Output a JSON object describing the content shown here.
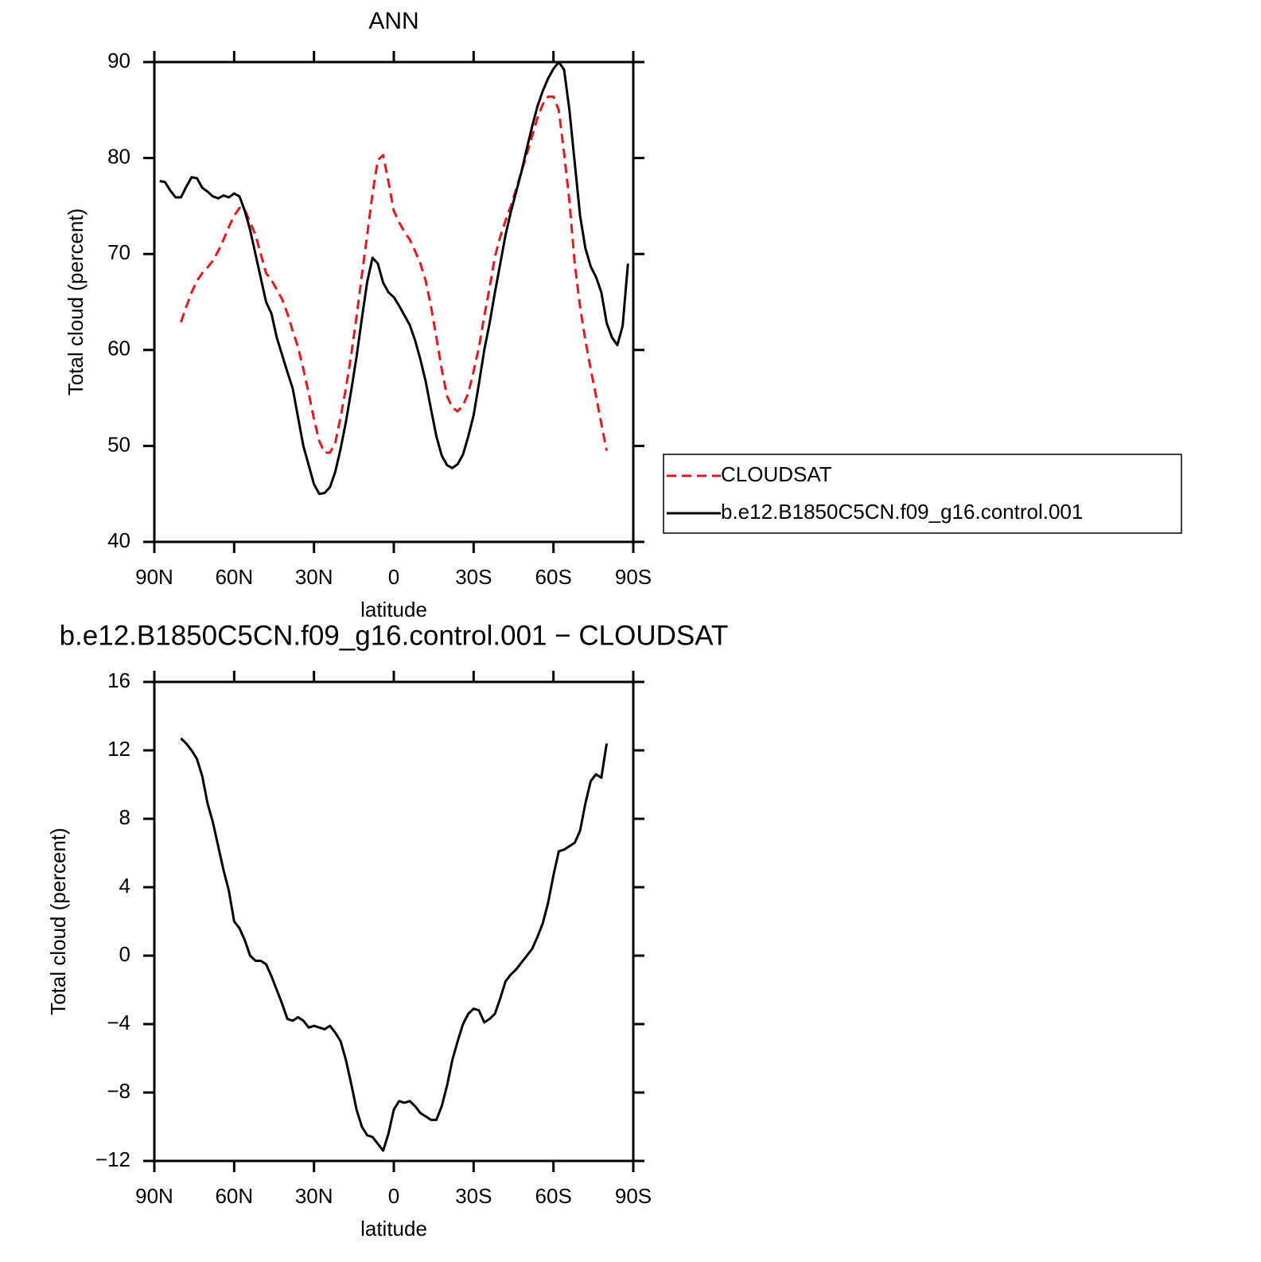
{
  "chart_data": [
    {
      "type": "line",
      "title": "ANN",
      "xlabel": "latitude",
      "ylabel": "Total cloud (percent)",
      "x": [
        88,
        86,
        84,
        82,
        80,
        78,
        76,
        74,
        72,
        70,
        68,
        66,
        64,
        62,
        60,
        58,
        56,
        54,
        52,
        50,
        48,
        46,
        44,
        42,
        40,
        38,
        36,
        34,
        32,
        30,
        28,
        26,
        24,
        22,
        20,
        18,
        16,
        14,
        12,
        10,
        8,
        6,
        4,
        2,
        0,
        -2,
        -4,
        -6,
        -8,
        -10,
        -12,
        -14,
        -16,
        -18,
        -20,
        -22,
        -24,
        -26,
        -28,
        -30,
        -32,
        -34,
        -36,
        -38,
        -40,
        -42,
        -44,
        -46,
        -48,
        -50,
        -52,
        -54,
        -56,
        -58,
        -60,
        -62,
        -64,
        -66,
        -68,
        -70,
        -72,
        -74,
        -76,
        -78,
        -80,
        -82,
        -84,
        -86,
        -88
      ],
      "series": [
        {
          "name": "CLOUDSAT",
          "color": "#e8171b",
          "dashed": true,
          "values": [
            null,
            null,
            null,
            null,
            62.9,
            64.5,
            66.0,
            67.2,
            68.0,
            68.6,
            69.3,
            70.3,
            71.5,
            72.8,
            74.0,
            74.8,
            74.6,
            73.3,
            72.0,
            70.0,
            68.0,
            67.3,
            66.3,
            65.3,
            63.8,
            62.0,
            60.3,
            58.0,
            55.5,
            52.8,
            50.5,
            49.3,
            49.3,
            50.3,
            53.0,
            56.0,
            59.5,
            63.5,
            67.8,
            72.0,
            76.3,
            79.8,
            80.3,
            77.5,
            74.5,
            73.3,
            72.3,
            71.5,
            70.3,
            69.0,
            67.2,
            64.5,
            61.3,
            58.0,
            55.2,
            54.0,
            53.6,
            54.2,
            55.5,
            57.8,
            60.3,
            63.5,
            66.5,
            69.7,
            71.8,
            73.5,
            75.0,
            76.8,
            78.6,
            80.4,
            82.3,
            84.2,
            85.6,
            86.4,
            86.4,
            85.0,
            80.5,
            75.5,
            69.0,
            64.5,
            61.0,
            58.0,
            55.2,
            52.3,
            49.5,
            null,
            null,
            null,
            null
          ]
        },
        {
          "name": "b.e12.B1850C5CN.f09_g16.control.001",
          "color": "#000000",
          "dashed": false,
          "values": [
            77.6,
            77.5,
            76.6,
            75.9,
            75.9,
            77.0,
            78.0,
            77.9,
            76.9,
            76.5,
            76.0,
            75.8,
            76.1,
            75.9,
            76.3,
            76.0,
            74.5,
            72.5,
            70.0,
            67.5,
            65.0,
            63.8,
            61.3,
            59.5,
            57.7,
            56.0,
            53.0,
            50.0,
            48.0,
            46.0,
            45.0,
            45.1,
            45.7,
            47.3,
            49.7,
            52.5,
            55.8,
            59.3,
            63.3,
            67.1,
            69.6,
            69.0,
            67.0,
            66.0,
            65.5,
            64.6,
            63.6,
            62.6,
            61.0,
            59.0,
            56.7,
            53.8,
            51.0,
            49.0,
            48.0,
            47.7,
            48.1,
            49.1,
            51.0,
            53.2,
            56.5,
            60.0,
            62.8,
            66.0,
            69.0,
            72.0,
            74.4,
            76.5,
            78.6,
            81.0,
            83.3,
            85.4,
            87.0,
            88.3,
            89.3,
            90.0,
            89.2,
            85.0,
            79.5,
            74.0,
            70.6,
            68.7,
            67.6,
            66.0,
            62.8,
            61.3,
            60.5,
            62.5,
            69.0
          ]
        }
      ],
      "xlim": [
        90,
        -90
      ],
      "xticks": [
        {
          "value": 90,
          "label": "90N"
        },
        {
          "value": 60,
          "label": "60N"
        },
        {
          "value": 30,
          "label": "30N"
        },
        0,
        {
          "value": -30,
          "label": "30S"
        },
        {
          "value": -60,
          "label": "60S"
        },
        {
          "value": -90,
          "label": "90S"
        }
      ],
      "ylim": [
        40,
        90
      ],
      "yticks": [
        40,
        50,
        60,
        70,
        80,
        90
      ],
      "legend": "outside-right"
    },
    {
      "type": "line",
      "title": "b.e12.B1850C5CN.f09_g16.control.001 − CLOUDSAT",
      "xlabel": "latitude",
      "ylabel": "Total cloud (percent)",
      "x": [
        80,
        78,
        76,
        74,
        72,
        70,
        68,
        66,
        64,
        62,
        60,
        58,
        56,
        54,
        52,
        50,
        48,
        46,
        44,
        42,
        40,
        38,
        36,
        34,
        32,
        30,
        28,
        26,
        24,
        22,
        20,
        18,
        16,
        14,
        12,
        10,
        8,
        6,
        4,
        2,
        0,
        -2,
        -4,
        -6,
        -8,
        -10,
        -12,
        -14,
        -16,
        -18,
        -20,
        -22,
        -24,
        -26,
        -28,
        -30,
        -32,
        -34,
        -36,
        -38,
        -40,
        -42,
        -44,
        -46,
        -48,
        -50,
        -52,
        -54,
        -56,
        -58,
        -60,
        -62,
        -64,
        -66,
        -68,
        -70,
        -72,
        -74,
        -76,
        -78,
        -80
      ],
      "values": [
        12.7,
        12.4,
        12.0,
        11.5,
        10.5,
        8.9,
        7.8,
        6.4,
        5.0,
        3.8,
        2.0,
        1.6,
        0.9,
        0.0,
        -0.3,
        -0.3,
        -0.5,
        -1.2,
        -2.0,
        -2.8,
        -3.7,
        -3.8,
        -3.6,
        -3.8,
        -4.2,
        -4.1,
        -4.2,
        -4.3,
        -4.1,
        -4.5,
        -5.0,
        -6.1,
        -7.5,
        -9.0,
        -10.0,
        -10.5,
        -10.6,
        -11.0,
        -11.4,
        -10.4,
        -9.0,
        -8.5,
        -8.6,
        -8.5,
        -8.8,
        -9.2,
        -9.4,
        -9.6,
        -9.6,
        -8.8,
        -7.6,
        -6.1,
        -5.0,
        -4.0,
        -3.4,
        -3.1,
        -3.2,
        -3.9,
        -3.7,
        -3.4,
        -2.5,
        -1.5,
        -1.1,
        -0.8,
        -0.4,
        0.0,
        0.4,
        1.1,
        1.9,
        3.1,
        4.7,
        6.1,
        6.2,
        6.4,
        6.6,
        7.3,
        8.9,
        10.2,
        10.6,
        10.4,
        12.4
      ],
      "color": "#000000",
      "xlim": [
        90,
        -90
      ],
      "xticks": [
        {
          "value": 90,
          "label": "90N"
        },
        {
          "value": 60,
          "label": "60N"
        },
        {
          "value": 30,
          "label": "30N"
        },
        0,
        {
          "value": -30,
          "label": "30S"
        },
        {
          "value": -60,
          "label": "60S"
        },
        {
          "value": -90,
          "label": "90S"
        }
      ],
      "ylim": [
        -12,
        16
      ],
      "yticks": [
        {
          "value": -12,
          "label": "−12"
        },
        {
          "value": -8,
          "label": "−8"
        },
        {
          "value": -4,
          "label": "−4"
        },
        0,
        4,
        8,
        12,
        16
      ]
    }
  ]
}
